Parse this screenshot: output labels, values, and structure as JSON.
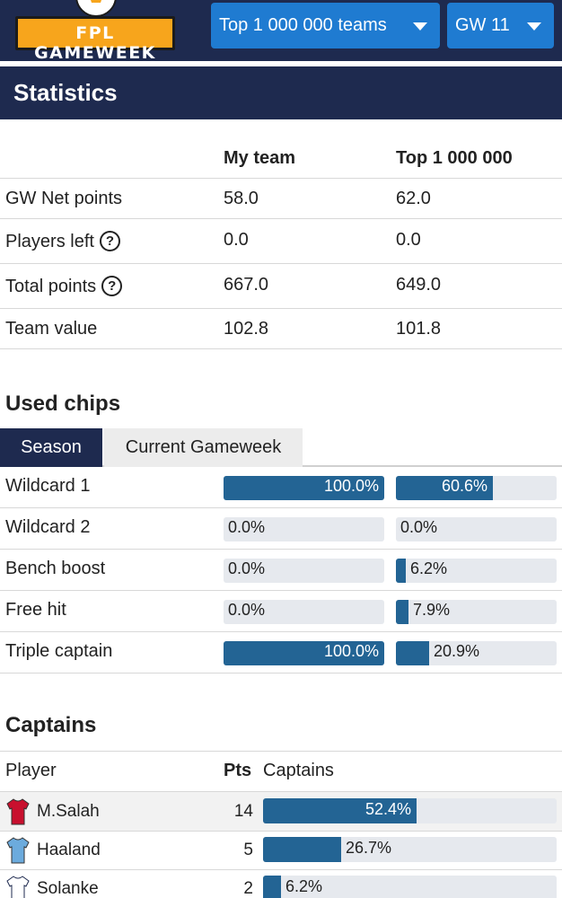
{
  "header": {
    "logo_text": "FPL GAMEWEEK",
    "teams_dropdown": "Top 1 000 000 teams",
    "gw_dropdown": "GW 11"
  },
  "statistics": {
    "title": "Statistics",
    "col_my": "My team",
    "col_top": "Top 1 000 000",
    "rows": [
      {
        "label": "GW Net points",
        "my": "58.0",
        "top": "62.0",
        "help": false
      },
      {
        "label": "Players left",
        "my": "0.0",
        "top": "0.0",
        "help": true
      },
      {
        "label": "Total points",
        "my": "667.0",
        "top": "649.0",
        "help": true
      },
      {
        "label": "Team value",
        "my": "102.8",
        "top": "101.8",
        "help": false
      }
    ]
  },
  "chips": {
    "title": "Used chips",
    "tabs": [
      "Season",
      "Current Gameweek"
    ],
    "rows": [
      {
        "label": "Wildcard 1",
        "my": 100.0,
        "my_text": "100.0%",
        "top": 60.6,
        "top_text": "60.6%"
      },
      {
        "label": "Wildcard 2",
        "my": 0.0,
        "my_text": "0.0%",
        "top": 0.0,
        "top_text": "0.0%"
      },
      {
        "label": "Bench boost",
        "my": 0.0,
        "my_text": "0.0%",
        "top": 6.2,
        "top_text": "6.2%"
      },
      {
        "label": "Free hit",
        "my": 0.0,
        "my_text": "0.0%",
        "top": 7.9,
        "top_text": "7.9%"
      },
      {
        "label": "Triple captain",
        "my": 100.0,
        "my_text": "100.0%",
        "top": 20.9,
        "top_text": "20.9%"
      }
    ]
  },
  "captains": {
    "title": "Captains",
    "col_player": "Player",
    "col_pts": "Pts",
    "col_captains": "Captains",
    "rows": [
      {
        "name": "M.Salah",
        "pts": "14",
        "pct": 52.4,
        "pct_text": "52.4%",
        "shirt": "liverpool-shirt-icon",
        "color": "#c8102e"
      },
      {
        "name": "Haaland",
        "pts": "5",
        "pct": 26.7,
        "pct_text": "26.7%",
        "shirt": "man-city-shirt-icon",
        "color": "#6cabdd"
      },
      {
        "name": "Solanke",
        "pts": "2",
        "pct": 6.2,
        "pct_text": "6.2%",
        "shirt": "tottenham-shirt-icon",
        "color": "#ffffff"
      }
    ]
  }
}
